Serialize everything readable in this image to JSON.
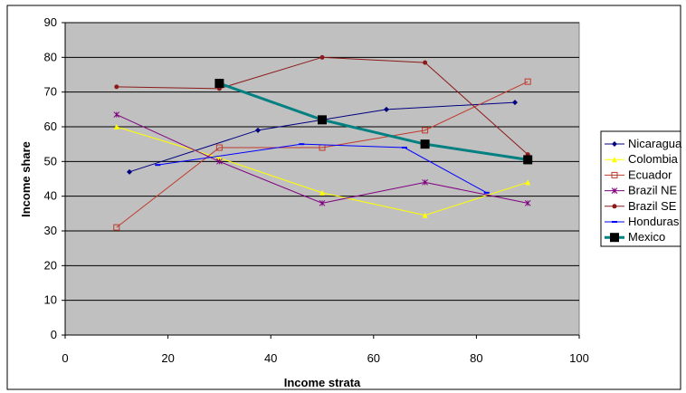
{
  "chart_data": {
    "type": "line",
    "title": "",
    "xlabel": "Income strata",
    "ylabel": "Income share",
    "xlim": [
      0,
      100
    ],
    "ylim": [
      0,
      90
    ],
    "x_ticks": [
      0,
      20,
      40,
      60,
      80,
      100
    ],
    "y_ticks": [
      0,
      10,
      20,
      30,
      40,
      50,
      60,
      70,
      80,
      90
    ],
    "grid": "horizontal",
    "plot_background": "#c0c0c0",
    "legend_position": "right",
    "series": [
      {
        "name": "Nicaragua",
        "color": "#000080",
        "marker": "diamond",
        "x": [
          12.5,
          37.5,
          62.5,
          87.5
        ],
        "y": [
          47,
          59,
          65,
          67
        ]
      },
      {
        "name": "Colombia",
        "color": "#ffff00",
        "marker": "triangle",
        "x": [
          10,
          30,
          50,
          70,
          90
        ],
        "y": [
          60,
          51,
          41,
          34.5,
          44
        ]
      },
      {
        "name": "Ecuador",
        "color": "#c0392b",
        "marker": "square-open",
        "x": [
          10,
          30,
          50,
          70,
          90
        ],
        "y": [
          31,
          54,
          54,
          59,
          73
        ]
      },
      {
        "name": "Brazil NE",
        "color": "#800080",
        "marker": "star",
        "x": [
          10,
          30,
          50,
          70,
          90
        ],
        "y": [
          63.5,
          50,
          38,
          44,
          38
        ]
      },
      {
        "name": "Brazil SE",
        "color": "#8b1a1a",
        "marker": "circle",
        "x": [
          10,
          30,
          50,
          70,
          90
        ],
        "y": [
          71.5,
          71,
          80,
          78.5,
          52
        ]
      },
      {
        "name": "Honduras",
        "color": "#0000ff",
        "marker": "dash",
        "x": [
          18,
          46,
          66,
          82
        ],
        "y": [
          49,
          55,
          54,
          41
        ]
      },
      {
        "name": "Mexico",
        "color": "#008080",
        "marker": "square-filled",
        "x": [
          30,
          50,
          70,
          90
        ],
        "y": [
          72.5,
          62,
          55,
          50.5
        ]
      }
    ]
  }
}
